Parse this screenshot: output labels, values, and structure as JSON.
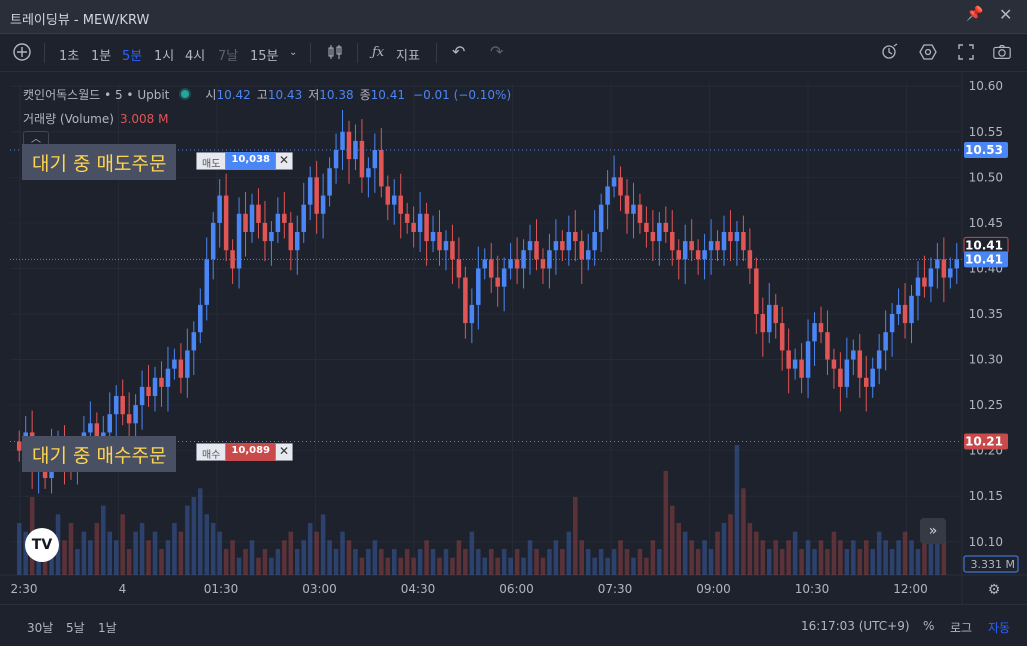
{
  "window": {
    "title": "트레이딩뷰 - MEW/KRW"
  },
  "toolbar": {
    "intervals": [
      {
        "label": "1초",
        "state": "normal"
      },
      {
        "label": "1분",
        "state": "normal"
      },
      {
        "label": "5분",
        "state": "active"
      },
      {
        "label": "1시",
        "state": "normal"
      },
      {
        "label": "4시",
        "state": "normal"
      },
      {
        "label": "7날",
        "state": "dim"
      },
      {
        "label": "15분",
        "state": "normal"
      }
    ],
    "indicators_label": "지표"
  },
  "legend": {
    "symbol": "캣인어독스월드 • 5 • Upbit",
    "open_label": "시",
    "open": "10.42",
    "high_label": "고",
    "high": "10.43",
    "low_label": "저",
    "low": "10.38",
    "close_label": "종",
    "close": "10.41",
    "change": "−0.01 (−0.10%)",
    "volume_label": "거래량 (Volume)",
    "volume": "3.008 M"
  },
  "orders": {
    "sell": {
      "label": "대기 중 매도주문",
      "kind": "매도",
      "amount": "10,038",
      "close": "✕",
      "price_tag": "10.53"
    },
    "buy": {
      "label": "대기 중 매수주문",
      "kind": "매수",
      "amount": "10,089",
      "close": "✕",
      "price_tag": "10.21"
    }
  },
  "logo_text": "TV",
  "bottombar": {
    "ranges": [
      "30날",
      "5날",
      "1날"
    ],
    "clock": "16:17:03 (UTC+9)",
    "percent": "%",
    "log": "로그",
    "auto": "자동"
  },
  "colors": {
    "up": "#4a86f5",
    "down": "#e05555",
    "background": "#1e222d",
    "sell_order_line": "#4a86f5",
    "buy_order_line": "#e05555"
  },
  "chart_data": {
    "type": "candlestick",
    "ylim": [
      10.08,
      10.62
    ],
    "y_ticks": [
      "10.60",
      "10.55",
      "10.50",
      "10.45",
      "10.40",
      "10.35",
      "10.30",
      "10.25",
      "10.20",
      "10.15",
      "10.10"
    ],
    "x_ticks": [
      "2:30",
      "4",
      "01:30",
      "03:00",
      "04:30",
      "06:00",
      "07:30",
      "09:00",
      "10:30",
      "12:00"
    ],
    "price_tags": {
      "last": "10.41",
      "prev_close": "10.41",
      "volume_tag": "3.331 M"
    },
    "grid": true,
    "close_series": [
      10.2,
      10.22,
      10.18,
      10.19,
      10.17,
      10.2,
      10.21,
      10.19,
      10.18,
      10.2,
      10.22,
      10.23,
      10.21,
      10.22,
      10.24,
      10.26,
      10.24,
      10.23,
      10.25,
      10.27,
      10.26,
      10.28,
      10.27,
      10.29,
      10.3,
      10.28,
      10.31,
      10.33,
      10.36,
      10.41,
      10.45,
      10.48,
      10.42,
      10.4,
      10.46,
      10.44,
      10.47,
      10.45,
      10.43,
      10.44,
      10.46,
      10.45,
      10.42,
      10.44,
      10.47,
      10.5,
      10.46,
      10.48,
      10.51,
      10.53,
      10.55,
      10.52,
      10.54,
      10.5,
      10.51,
      10.53,
      10.49,
      10.47,
      10.48,
      10.46,
      10.45,
      10.44,
      10.46,
      10.43,
      10.44,
      10.42,
      10.43,
      10.41,
      10.39,
      10.34,
      10.36,
      10.4,
      10.41,
      10.39,
      10.38,
      10.4,
      10.41,
      10.4,
      10.42,
      10.43,
      10.41,
      10.4,
      10.42,
      10.43,
      10.42,
      10.44,
      10.43,
      10.41,
      10.42,
      10.44,
      10.47,
      10.49,
      10.5,
      10.48,
      10.46,
      10.47,
      10.45,
      10.44,
      10.43,
      10.45,
      10.44,
      10.42,
      10.41,
      10.43,
      10.42,
      10.41,
      10.42,
      10.43,
      10.42,
      10.44,
      10.43,
      10.44,
      10.42,
      10.4,
      10.35,
      10.33,
      10.36,
      10.34,
      10.31,
      10.29,
      10.3,
      10.28,
      10.32,
      10.34,
      10.33,
      10.3,
      10.29,
      10.27,
      10.3,
      10.31,
      10.28,
      10.27,
      10.29,
      10.31,
      10.33,
      10.35,
      10.36,
      10.34,
      10.37,
      10.39,
      10.38,
      10.4,
      10.41,
      10.39,
      10.4,
      10.41
    ],
    "volume_series": [
      0.6,
      0.5,
      0.9,
      0.4,
      0.3,
      0.5,
      0.7,
      0.4,
      0.6,
      0.3,
      0.5,
      0.4,
      0.6,
      0.8,
      0.5,
      0.4,
      0.7,
      0.3,
      0.5,
      0.6,
      0.4,
      0.5,
      0.3,
      0.4,
      0.6,
      0.5,
      0.8,
      0.9,
      1.0,
      0.7,
      0.6,
      0.5,
      0.3,
      0.4,
      0.2,
      0.3,
      0.4,
      0.2,
      0.3,
      0.2,
      0.3,
      0.4,
      0.5,
      0.3,
      0.4,
      0.6,
      0.5,
      0.7,
      0.4,
      0.3,
      0.5,
      0.4,
      0.3,
      0.2,
      0.3,
      0.4,
      0.3,
      0.2,
      0.3,
      0.2,
      0.3,
      0.2,
      0.3,
      0.4,
      0.3,
      0.2,
      0.3,
      0.2,
      0.4,
      0.3,
      0.5,
      0.3,
      0.2,
      0.3,
      0.2,
      0.3,
      0.2,
      0.3,
      0.2,
      0.4,
      0.3,
      0.2,
      0.3,
      0.4,
      0.3,
      0.5,
      0.9,
      0.4,
      0.3,
      0.2,
      0.3,
      0.2,
      0.3,
      0.4,
      0.3,
      0.2,
      0.3,
      0.2,
      0.4,
      0.3,
      1.2,
      0.8,
      0.6,
      0.5,
      0.4,
      0.3,
      0.4,
      0.3,
      0.5,
      0.6,
      0.7,
      1.5,
      1.0,
      0.6,
      0.5,
      0.4,
      0.3,
      0.4,
      0.3,
      0.4,
      0.5,
      0.3,
      0.4,
      0.3,
      0.4,
      0.3,
      0.5,
      0.4,
      0.3,
      0.4,
      0.3,
      0.4,
      0.3,
      0.5,
      0.4,
      0.3,
      0.4,
      0.5,
      0.4,
      0.3,
      0.4,
      0.6,
      0.5,
      0.4
    ]
  }
}
